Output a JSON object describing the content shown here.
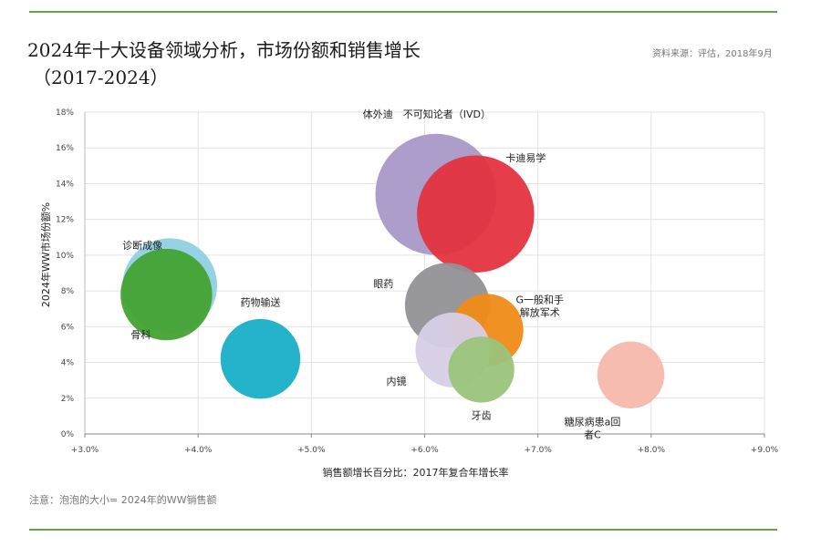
{
  "header": {
    "title_line1": "2024年十大设备领域分析，市场份额和销售增长",
    "title_line2": "（2017-2024）",
    "source": "资料来源：评估，2018年9月"
  },
  "footer": {
    "note": "注意：泡泡的大小= 2024年的WW销售额"
  },
  "colors": {
    "rule": "#6a9e4a",
    "grid": "#e3e3e3"
  },
  "chart_data": {
    "type": "scatter",
    "variant": "bubble",
    "xlabel": "销售额增长百分比：2017年复合年增长率",
    "ylabel": "2024年WW市场份额%",
    "xlim": [
      3.0,
      9.0
    ],
    "ylim": [
      0,
      18
    ],
    "x_ticks": [
      "+3.0%",
      "+4.0%",
      "+5.0%",
      "+6.0%",
      "+7.0%",
      "+8.0%",
      "+9.0%"
    ],
    "y_ticks": [
      "0%",
      "2%",
      "4%",
      "6%",
      "8%",
      "10%",
      "12%",
      "14%",
      "16%",
      "18%"
    ],
    "grid": true,
    "size_note": "bubble size = 2024 WW sales",
    "series": [
      {
        "name": "诊断成像",
        "x": 3.75,
        "y": 8.3,
        "size": 9.6,
        "color": "#8fd0e3"
      },
      {
        "name": "骨科",
        "x": 3.72,
        "y": 7.8,
        "size": 9.3,
        "color": "#43a232"
      },
      {
        "name": "药物输送",
        "x": 4.55,
        "y": 4.2,
        "size": 8.1,
        "color": "#19afc9"
      },
      {
        "name": "体外迪　不可知论者（IVD）",
        "x": 6.1,
        "y": 13.4,
        "size": 12.3,
        "color": "#a898c8"
      },
      {
        "name": "卡迪易学",
        "x": 6.45,
        "y": 12.3,
        "size": 11.9,
        "color": "#e4333f"
      },
      {
        "name": "眼药",
        "x": 6.2,
        "y": 7.2,
        "size": 8.6,
        "color": "#929297"
      },
      {
        "name": "G一般和手\n解放军术",
        "x": 6.55,
        "y": 5.8,
        "size": 7.4,
        "color": "#f18b17"
      },
      {
        "name": "内镜",
        "x": 6.25,
        "y": 4.7,
        "size": 7.6,
        "color": "#d6cfe6"
      },
      {
        "name": "牙齿",
        "x": 6.5,
        "y": 3.6,
        "size": 6.7,
        "color": "#9bc47a"
      },
      {
        "name": "糖尿病患a回\n者C",
        "x": 7.82,
        "y": 3.3,
        "size": 6.8,
        "color": "#f6b8ac"
      }
    ]
  }
}
